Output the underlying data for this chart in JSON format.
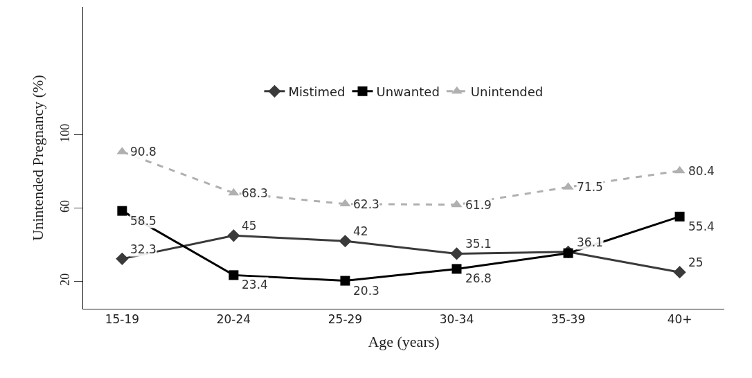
{
  "chart_data": {
    "type": "line",
    "xlabel": "Age (years)",
    "ylabel": "Unintended Pregnancy (%)",
    "categories": [
      "15-19",
      "20-24",
      "25-29",
      "30-34",
      "35-39",
      "40+"
    ],
    "series": [
      {
        "name": "Mistimed",
        "color": "#3a3a3a",
        "marker": "diamond",
        "values": [
          32.3,
          45,
          42,
          35.1,
          36.1,
          25
        ],
        "value_labels": [
          "32.3",
          "45",
          "42",
          "35.1",
          "36.1",
          "25"
        ]
      },
      {
        "name": "Unwanted",
        "color": "#000000",
        "marker": "square",
        "values": [
          58.5,
          23.4,
          20.3,
          26.8,
          35.4,
          55.4
        ],
        "value_labels": [
          "58.5",
          "23.4",
          "20.3",
          "26.8",
          null,
          "55.4"
        ]
      },
      {
        "name": "Unintended",
        "color": "#b0b0b0",
        "marker": "triangle",
        "line_style": "dashed",
        "values": [
          90.8,
          68.3,
          62.3,
          61.9,
          71.5,
          80.4
        ],
        "value_labels": [
          "90.8",
          "68.3",
          "62.3",
          "61.9",
          "71.5",
          "80.4"
        ]
      }
    ],
    "ylim": [
      5,
      170
    ],
    "yticks": [
      20,
      60,
      100
    ],
    "legend": "top"
  }
}
